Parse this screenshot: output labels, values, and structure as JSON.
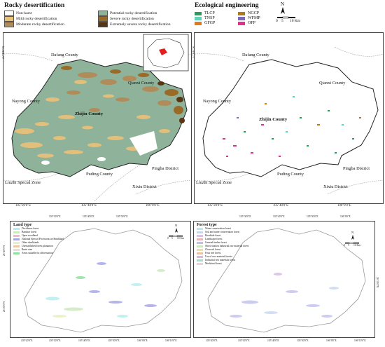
{
  "rocky": {
    "title": "Rocky desertification",
    "legend": [
      {
        "label": "Non-karst",
        "color": "#ffffff"
      },
      {
        "label": "Mild rocky desertification",
        "color": "#e8c07a"
      },
      {
        "label": "Moderate rocky desertification",
        "color": "#b08c5a"
      },
      {
        "label": "Potential rocky desertification",
        "color": "#8fb29a"
      },
      {
        "label": "Severe rocky desertification",
        "color": "#9a6a28"
      },
      {
        "label": "Extremely severe rocky desertification",
        "color": "#5a3514"
      }
    ]
  },
  "eco": {
    "title": "Ecological engineering",
    "legend": [
      {
        "label": "TLCP",
        "color": "#2e9a5a"
      },
      {
        "label": "NGCP",
        "color": "#b07a1a"
      },
      {
        "label": "TNSP",
        "color": "#5fd4b4"
      },
      {
        "label": "WFMP",
        "color": "#7a6ab8"
      },
      {
        "label": "GFGP",
        "color": "#e07a1a"
      },
      {
        "label": "OFP",
        "color": "#e0308a"
      }
    ]
  },
  "places": {
    "dafang": "Dafang County",
    "qianxi": "Qianxi County",
    "nayong": "Nayong County",
    "zhijin": "Zhijin County",
    "liuzhi": "Liuzhi Special Zone",
    "puding": "Puding County",
    "pingba": "Pingba District",
    "xixiu": "Xixiu District"
  },
  "north": "N",
  "scale": {
    "a": "0",
    "b": "5",
    "c": "10 Km",
    "c2": "10 Km"
  },
  "axes": {
    "x": [
      "105°20'0\"E",
      "105°40'0\"E",
      "106°0'0\"E"
    ],
    "y": [
      "27°0'0\"N",
      "26°40'0\"N",
      "26°20'0\"N"
    ],
    "x2": [
      "105°20'0\"E",
      "105°30'0\"E",
      "105°40'0\"E",
      "105°50'0\"E",
      "106°0'0\"E",
      "106°10'0\"E"
    ],
    "y2": [
      "26°40'0\"N",
      "26°30'0\"N",
      "26°20'0\"N"
    ]
  },
  "land": {
    "title": "Land type",
    "legend": [
      {
        "label": "Deciduous forest",
        "color": "#b8eef0"
      },
      {
        "label": "Bamboo forest",
        "color": "#cfe8c0"
      },
      {
        "label": "Open woodland",
        "color": "#f0b8c8"
      },
      {
        "label": "National Special Provisions on Shrubland",
        "color": "#a8a8e8"
      },
      {
        "label": "Other shrublands",
        "color": "#e8f0c0"
      },
      {
        "label": "Unestablished forest plantation",
        "color": "#f0c8a0"
      },
      {
        "label": "Burnt area",
        "color": "#e0e0e0"
      },
      {
        "label": "Areas suitable for afforestation",
        "color": "#90e0a0"
      }
    ]
  },
  "forest": {
    "title": "Forest type",
    "legend": [
      {
        "label": "Water conservation forest",
        "color": "#b8e8f0"
      },
      {
        "label": "Soil and water conservation forest",
        "color": "#c8d8f0"
      },
      {
        "label": "Roadside forest",
        "color": "#e0c0e8"
      },
      {
        "label": "Landscape forest",
        "color": "#f0b0c0"
      },
      {
        "label": "General timber forest",
        "color": "#c0c0f0"
      },
      {
        "label": "Short rotation industrial raw material forest",
        "color": "#d0e8c0"
      },
      {
        "label": "Charcoal forest",
        "color": "#f0e0a0"
      },
      {
        "label": "Fruit tree forest",
        "color": "#f0c0a0"
      },
      {
        "label": "Use of raw material forests",
        "color": "#d8b8e0"
      },
      {
        "label": "Industrial raw materials forest",
        "color": "#b0d8c8"
      },
      {
        "label": "Medicinal forest",
        "color": "#f0d0e0"
      }
    ]
  }
}
